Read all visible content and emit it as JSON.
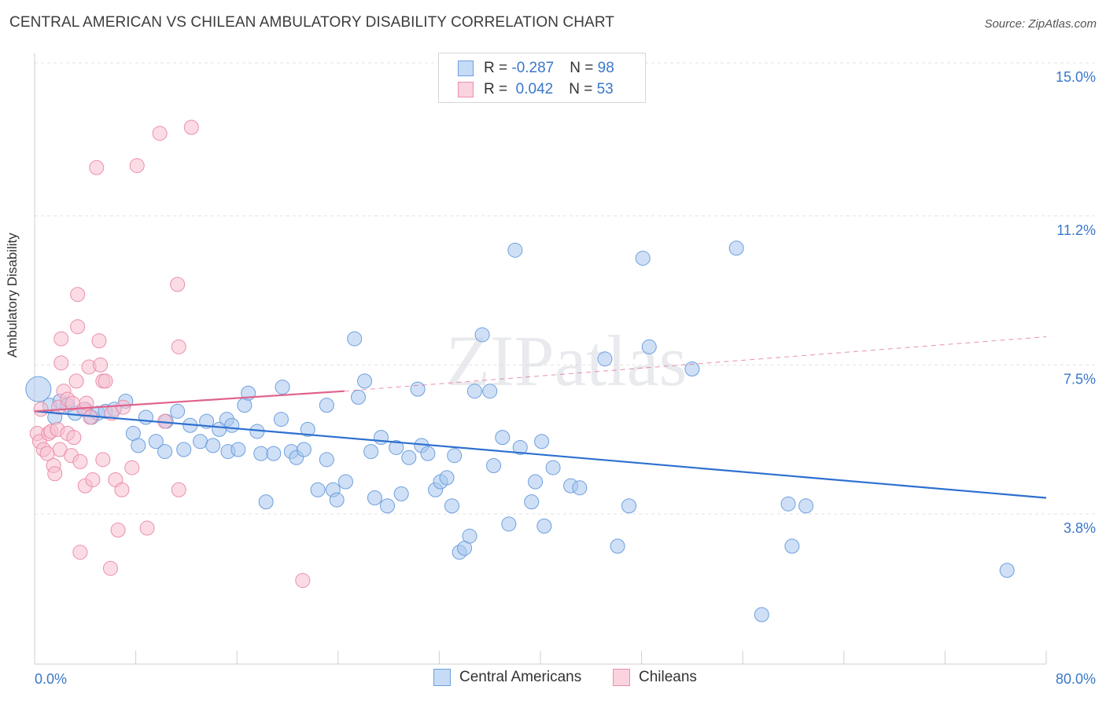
{
  "title": "CENTRAL AMERICAN VS CHILEAN AMBULATORY DISABILITY CORRELATION CHART",
  "source": "Source: ZipAtlas.com",
  "watermark": "ZIPatlas",
  "legend": {
    "rows": [
      {
        "r_label": "R = ",
        "r_value": "-0.287",
        "n_label": "N = ",
        "n_value": "98",
        "color": "#a7c6ee",
        "border": "#6e9fde"
      },
      {
        "r_label": "R = ",
        "r_value": " 0.042",
        "n_label": "N = ",
        "n_value": "53",
        "color": "#f7bfd0",
        "border": "#ea8fab"
      }
    ]
  },
  "bottom_legend": [
    {
      "label": "Central Americans",
      "color": "#a7c6ee",
      "border": "#6e9fde"
    },
    {
      "label": "Chileans",
      "color": "#f7bfd0",
      "border": "#ea8fab"
    }
  ],
  "chart_data": {
    "type": "scatter",
    "title": "CENTRAL AMERICAN VS CHILEAN AMBULATORY DISABILITY CORRELATION CHART",
    "xlabel": "",
    "ylabel": "Ambulatory Disability",
    "xlim": [
      0,
      80
    ],
    "ylim": [
      0,
      16
    ],
    "x_tick_labels": [
      "0.0%",
      "80.0%"
    ],
    "y_ticks": [
      3.8,
      7.5,
      11.2,
      15.0
    ],
    "y_tick_labels": [
      "3.8%",
      "7.5%",
      "11.2%",
      "15.0%"
    ],
    "grid": true,
    "legend_position": "top-center",
    "series": [
      {
        "name": "Central Americans",
        "color": "#a7c6ee",
        "stroke": "#6e9fde",
        "trend": {
          "x": [
            0,
            80
          ],
          "y": [
            6.35,
            4.2
          ],
          "color": "#2d6fd0"
        },
        "points": [
          [
            0.3,
            6.9
          ],
          [
            1.2,
            6.5
          ],
          [
            1.6,
            6.2
          ],
          [
            2.0,
            6.6
          ],
          [
            2.6,
            6.5
          ],
          [
            3.2,
            6.3
          ],
          [
            4.0,
            6.4
          ],
          [
            4.5,
            6.2
          ],
          [
            5.0,
            6.3
          ],
          [
            5.6,
            6.35
          ],
          [
            6.3,
            6.4
          ],
          [
            7.2,
            6.6
          ],
          [
            7.8,
            5.8
          ],
          [
            8.2,
            5.5
          ],
          [
            8.8,
            6.2
          ],
          [
            9.6,
            5.6
          ],
          [
            10.3,
            5.35
          ],
          [
            10.4,
            6.1
          ],
          [
            11.3,
            6.35
          ],
          [
            11.8,
            5.4
          ],
          [
            12.3,
            6.0
          ],
          [
            13.1,
            5.6
          ],
          [
            13.6,
            6.1
          ],
          [
            14.1,
            5.5
          ],
          [
            14.6,
            5.9
          ],
          [
            15.2,
            6.15
          ],
          [
            15.6,
            6.0
          ],
          [
            15.3,
            5.35
          ],
          [
            16.1,
            5.4
          ],
          [
            16.6,
            6.5
          ],
          [
            16.9,
            6.8
          ],
          [
            17.6,
            5.85
          ],
          [
            17.9,
            5.3
          ],
          [
            18.3,
            4.1
          ],
          [
            18.9,
            5.3
          ],
          [
            19.5,
            6.15
          ],
          [
            19.6,
            6.95
          ],
          [
            20.3,
            5.35
          ],
          [
            20.7,
            5.2
          ],
          [
            21.3,
            5.4
          ],
          [
            21.6,
            5.9
          ],
          [
            22.4,
            4.4
          ],
          [
            23.1,
            5.15
          ],
          [
            23.1,
            6.5
          ],
          [
            23.6,
            4.4
          ],
          [
            23.9,
            4.15
          ],
          [
            24.6,
            4.6
          ],
          [
            25.3,
            8.15
          ],
          [
            25.6,
            6.7
          ],
          [
            26.1,
            7.1
          ],
          [
            26.6,
            5.35
          ],
          [
            26.9,
            4.2
          ],
          [
            27.4,
            5.7
          ],
          [
            27.9,
            4.0
          ],
          [
            28.6,
            5.45
          ],
          [
            29.0,
            4.3
          ],
          [
            29.6,
            5.2
          ],
          [
            30.6,
            5.5
          ],
          [
            30.3,
            6.9
          ],
          [
            31.1,
            5.3
          ],
          [
            31.7,
            4.4
          ],
          [
            32.1,
            4.6
          ],
          [
            32.6,
            4.7
          ],
          [
            33.0,
            4.0
          ],
          [
            33.2,
            5.25
          ],
          [
            33.6,
            2.85
          ],
          [
            34.0,
            2.95
          ],
          [
            34.4,
            3.25
          ],
          [
            34.8,
            6.85
          ],
          [
            35.4,
            8.25
          ],
          [
            36.0,
            6.85
          ],
          [
            36.3,
            5.0
          ],
          [
            37.0,
            5.7
          ],
          [
            37.5,
            3.55
          ],
          [
            38.0,
            10.35
          ],
          [
            38.4,
            5.45
          ],
          [
            39.3,
            4.1
          ],
          [
            39.6,
            4.6
          ],
          [
            40.1,
            5.6
          ],
          [
            40.3,
            3.5
          ],
          [
            41.0,
            4.95
          ],
          [
            42.4,
            4.5
          ],
          [
            43.1,
            4.45
          ],
          [
            45.1,
            7.65
          ],
          [
            46.1,
            3.0
          ],
          [
            47.0,
            4.0
          ],
          [
            48.1,
            10.15
          ],
          [
            48.6,
            7.95
          ],
          [
            52.0,
            7.4
          ],
          [
            55.5,
            10.4
          ],
          [
            57.5,
            1.3
          ],
          [
            59.6,
            4.05
          ],
          [
            59.9,
            3.0
          ],
          [
            61.0,
            4.0
          ],
          [
            76.9,
            2.4
          ]
        ]
      },
      {
        "name": "Chileans",
        "color": "#f7bfd0",
        "stroke": "#ea8fab",
        "trend": {
          "x": [
            0,
            24.5
          ],
          "y": [
            6.35,
            6.85
          ],
          "color": "#e0628b",
          "extend_to_x": 80,
          "extend_y": 8.2
        },
        "points": [
          [
            0.2,
            5.8
          ],
          [
            0.4,
            5.6
          ],
          [
            0.5,
            6.4
          ],
          [
            0.7,
            5.4
          ],
          [
            1.0,
            5.3
          ],
          [
            1.1,
            5.8
          ],
          [
            1.3,
            5.85
          ],
          [
            1.5,
            5.0
          ],
          [
            1.6,
            4.8
          ],
          [
            1.8,
            5.9
          ],
          [
            1.9,
            6.45
          ],
          [
            2.0,
            5.4
          ],
          [
            2.1,
            8.15
          ],
          [
            2.1,
            7.55
          ],
          [
            2.3,
            6.85
          ],
          [
            2.6,
            6.65
          ],
          [
            2.6,
            5.8
          ],
          [
            2.9,
            5.25
          ],
          [
            3.0,
            6.55
          ],
          [
            3.1,
            5.7
          ],
          [
            3.3,
            7.1
          ],
          [
            3.4,
            9.25
          ],
          [
            3.4,
            8.45
          ],
          [
            3.6,
            2.85
          ],
          [
            3.6,
            5.1
          ],
          [
            3.9,
            6.4
          ],
          [
            4.0,
            4.5
          ],
          [
            4.1,
            6.55
          ],
          [
            4.3,
            7.45
          ],
          [
            4.4,
            6.2
          ],
          [
            4.6,
            4.65
          ],
          [
            4.9,
            12.4
          ],
          [
            5.1,
            8.1
          ],
          [
            5.2,
            7.5
          ],
          [
            5.4,
            7.1
          ],
          [
            5.4,
            5.15
          ],
          [
            5.6,
            7.1
          ],
          [
            6.0,
            2.45
          ],
          [
            6.1,
            6.3
          ],
          [
            6.4,
            4.65
          ],
          [
            6.6,
            3.4
          ],
          [
            6.9,
            4.4
          ],
          [
            7.0,
            6.45
          ],
          [
            7.7,
            4.95
          ],
          [
            8.1,
            12.45
          ],
          [
            8.9,
            3.45
          ],
          [
            9.9,
            13.25
          ],
          [
            10.3,
            6.1
          ],
          [
            11.4,
            4.4
          ],
          [
            11.3,
            9.5
          ],
          [
            11.4,
            7.95
          ],
          [
            12.4,
            13.4
          ],
          [
            21.2,
            2.15
          ]
        ]
      }
    ]
  }
}
